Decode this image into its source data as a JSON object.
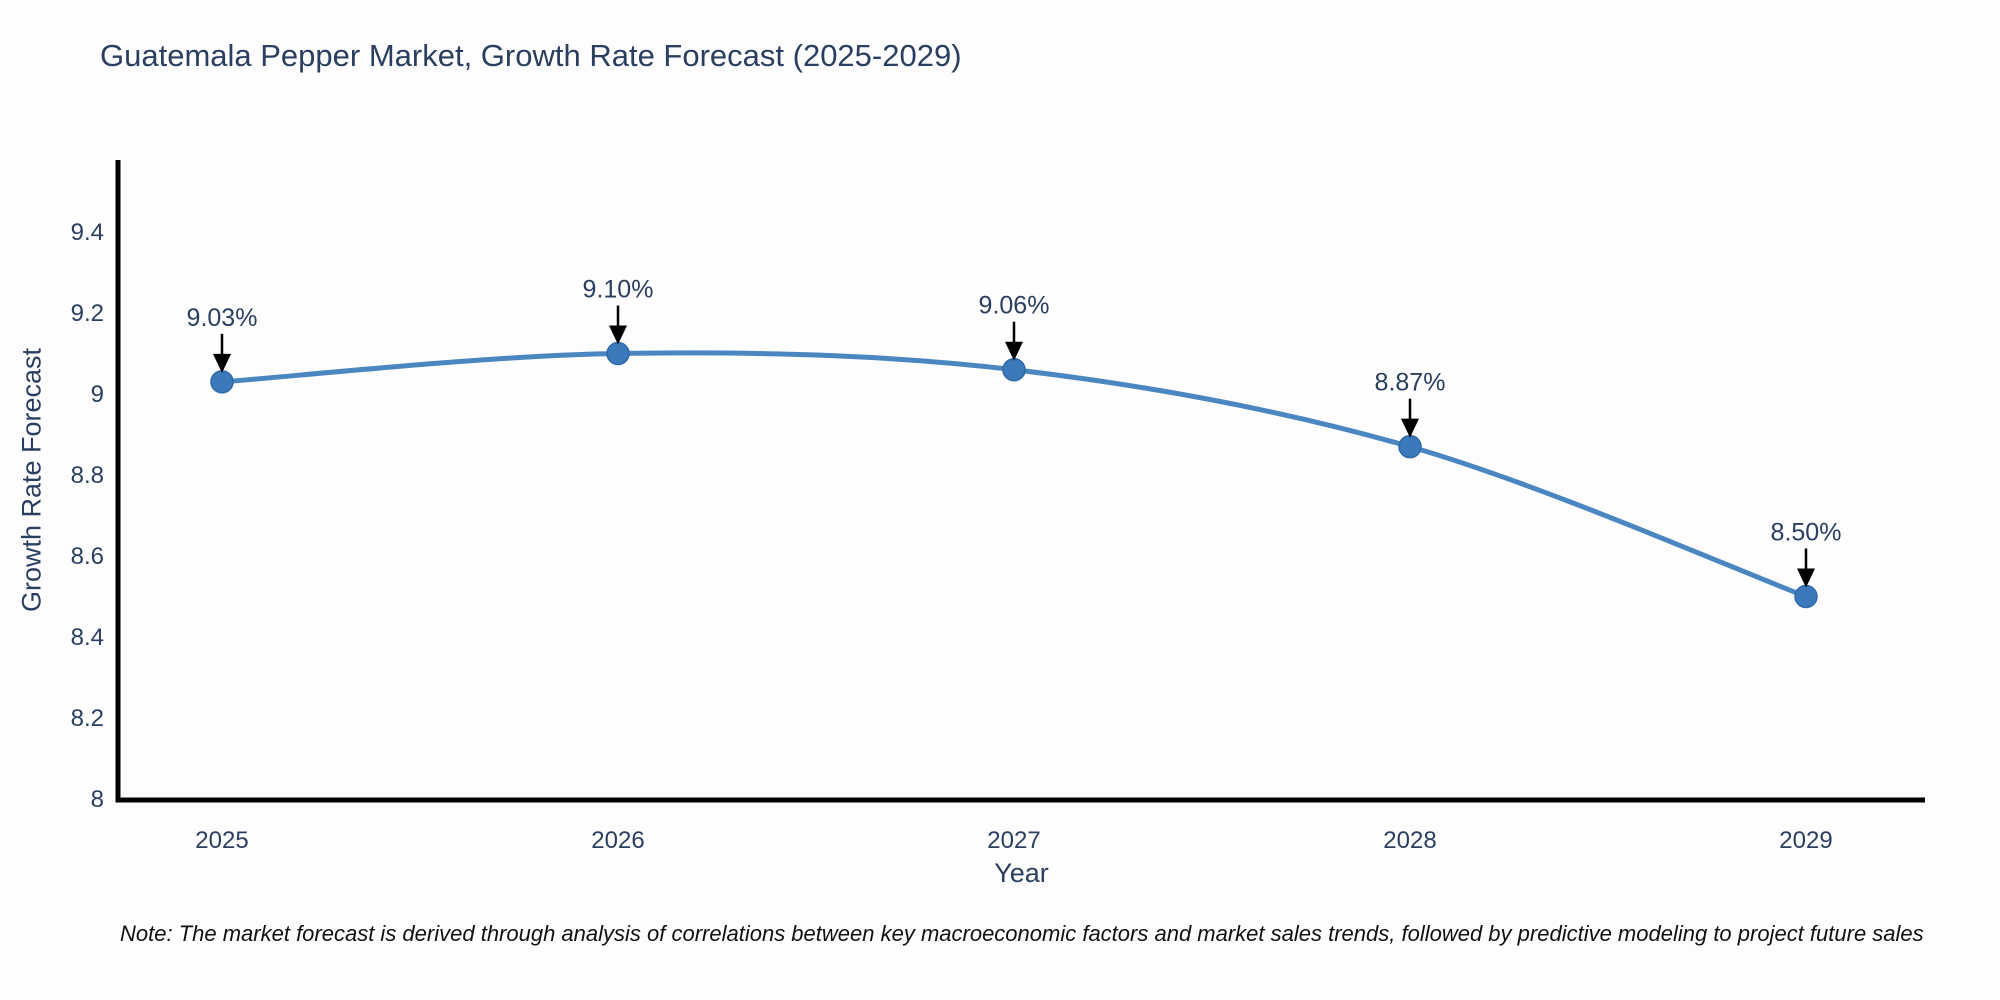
{
  "title": "Guatemala Pepper Market, Growth Rate Forecast (2025-2029)",
  "note": "Note: The market forecast is derived through analysis of correlations between key macroeconomic factors and market sales trends, followed by predictive modeling to project future sales",
  "chart_data": {
    "type": "line",
    "title": "Guatemala Pepper Market, Growth Rate Forecast (2025-2029)",
    "xlabel": "Year",
    "ylabel": "Growth Rate Forecast",
    "x": [
      2025,
      2026,
      2027,
      2028,
      2029
    ],
    "values": [
      9.03,
      9.1,
      9.06,
      8.87,
      8.5
    ],
    "point_labels": [
      "9.03%",
      "9.10%",
      "9.06%",
      "8.87%",
      "8.50%"
    ],
    "xticklabels": [
      "2025",
      "2026",
      "2027",
      "2028",
      "2029"
    ],
    "yticks": [
      8,
      8.2,
      8.4,
      8.6,
      8.8,
      9,
      9.2,
      9.4
    ],
    "yticklabels": [
      "8",
      "8.2",
      "8.4",
      "8.6",
      "8.8",
      "9",
      "9.2",
      "9.4"
    ],
    "xlim": [
      2024.74,
      2029.3
    ],
    "ylim": [
      8,
      9.575
    ],
    "grid": false,
    "legend": false,
    "line_shape": "spline",
    "annotation_style": "label-above-with-down-arrow",
    "colors": {
      "line": "#4a86c0",
      "marker": "#3b79ba",
      "marker_edge": "#2f6aa8",
      "text": "#2a3f5f",
      "axis": "#000000",
      "arrow": "#000000",
      "background": "#fdfdfe"
    }
  }
}
